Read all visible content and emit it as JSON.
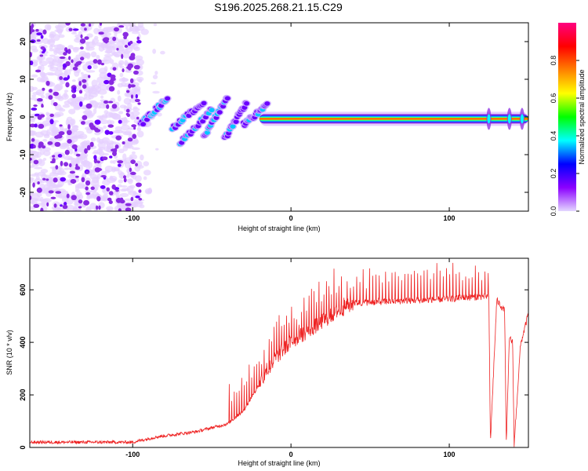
{
  "title": "S196.2025.268.21.15.C29",
  "colors": {
    "line": "#ee2222",
    "ridge": [
      "#ff0000",
      "#ffff00",
      "#00ff00",
      "#00ffff",
      "#0000ff",
      "#8a2be2",
      "#e6d0ff"
    ]
  },
  "colorbar": {
    "label": "Normalized spectral amplitude",
    "range": [
      0,
      1
    ],
    "ticks": [
      "0.0",
      "0.2",
      "0.4",
      "0.6",
      "0.8"
    ],
    "tick_values": [
      0.0,
      0.2,
      0.4,
      0.6,
      0.8
    ],
    "colors": [
      "#e4d7ff",
      "#8b00ff",
      "#0000ff",
      "#00ffff",
      "#00ff00",
      "#ffff00",
      "#ff8000",
      "#ff0000",
      "#ff0080"
    ]
  },
  "chart_data": [
    {
      "type": "heatmap",
      "title": "S196.2025.268.21.15.C29",
      "xlabel": "Height of straight line (km)",
      "ylabel": "Frequency (Hz)",
      "xlim": [
        -165,
        150
      ],
      "ylim": [
        -25,
        25
      ],
      "x_ticks": [
        -100,
        0,
        100
      ],
      "y_ticks": [
        -20,
        -10,
        0,
        10,
        20
      ],
      "description_points": {
        "noise_region_x": [
          -165,
          -95
        ],
        "dispersive_arcs": [
          {
            "x": [
              -95,
              -78
            ],
            "y": [
              -2,
              5
            ]
          },
          {
            "x": [
              -75,
              -55
            ],
            "y": [
              -3,
              4
            ]
          },
          {
            "x": [
              -70,
              -50
            ],
            "y": [
              -7,
              2
            ]
          },
          {
            "x": [
              -55,
              -40
            ],
            "y": [
              -5,
              5
            ]
          },
          {
            "x": [
              -42,
              -28
            ],
            "y": [
              -6,
              4
            ]
          },
          {
            "x": [
              -30,
              -15
            ],
            "y": [
              -2,
              3
            ]
          }
        ],
        "carrier_line": {
          "x": [
            -20,
            150
          ],
          "y": -0.5
        }
      }
    },
    {
      "type": "line",
      "xlabel": "Height of straight line (km)",
      "ylabel": "SNR (10 * v/v)",
      "xlim": [
        -165,
        150
      ],
      "ylim": [
        0,
        720
      ],
      "x_ticks": [
        -100,
        0,
        100
      ],
      "y_ticks": [
        0,
        200,
        400,
        600
      ],
      "envelope": {
        "x": [
          -165,
          -100,
          -85,
          -60,
          -40,
          -30,
          -20,
          -10,
          0,
          10,
          20,
          30,
          40,
          60,
          80,
          100,
          110,
          125,
          126,
          130,
          135,
          136,
          138,
          140,
          141,
          145,
          150
        ],
        "y": [
          20,
          20,
          40,
          60,
          90,
          140,
          240,
          340,
          400,
          440,
          480,
          520,
          550,
          555,
          560,
          565,
          570,
          575,
          20,
          560,
          520,
          10,
          420,
          400,
          10,
          390,
          510
        ]
      }
    }
  ],
  "x_tick_labels": [
    "-100",
    "0",
    "100"
  ],
  "top_y_tick_labels": [
    "-20",
    "-10",
    "0",
    "10",
    "20"
  ],
  "bottom_y_tick_labels": [
    "0",
    "200",
    "400",
    "600"
  ]
}
